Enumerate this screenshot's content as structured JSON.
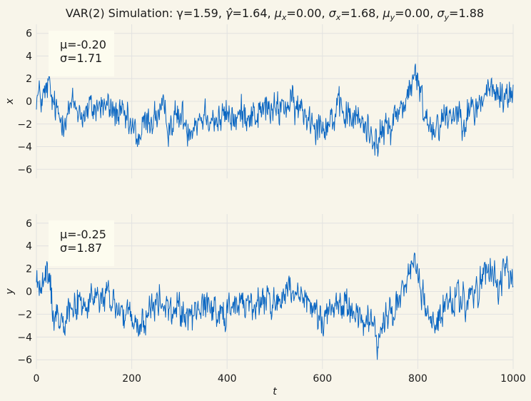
{
  "chart_data": {
    "type": "line",
    "title_parts": [
      "VAR(2) Simulation: γ=1.59, ",
      "γ̂",
      "=1.64, ",
      "μ",
      "x",
      "=0.00, ",
      "σ",
      "x",
      "=1.68, ",
      "μ",
      "y",
      "=0.00, ",
      "σ",
      "y",
      "=1.88"
    ],
    "xlabel": "t",
    "xlim": [
      0,
      1000
    ],
    "xticks": [
      0,
      200,
      400,
      600,
      800,
      1000
    ],
    "grid": true,
    "colors": {
      "background": "#f8f5ea",
      "line": "#0a66c2",
      "grid": "#e2e2e0",
      "stat_box": "#fdfcef"
    },
    "panels": [
      {
        "ylabel": "x",
        "ylim": [
          -6.8,
          6.8
        ],
        "yticks": [
          -6,
          -4,
          -2,
          0,
          2,
          4,
          6
        ],
        "stats": {
          "mean_label": "μ=-0.20",
          "std_label": "σ=1.71"
        },
        "anchors": [
          [
            0,
            0.6
          ],
          [
            10,
            0.2
          ],
          [
            20,
            0.5
          ],
          [
            25,
            1.6
          ],
          [
            30,
            0.3
          ],
          [
            40,
            -0.8
          ],
          [
            50,
            -1.6
          ],
          [
            60,
            -1.0
          ],
          [
            80,
            -0.4
          ],
          [
            100,
            -1.2
          ],
          [
            120,
            -0.6
          ],
          [
            140,
            -0.3
          ],
          [
            160,
            -0.8
          ],
          [
            180,
            -1.5
          ],
          [
            200,
            -2.5
          ],
          [
            215,
            -3.3
          ],
          [
            225,
            -2.2
          ],
          [
            240,
            -1.6
          ],
          [
            260,
            -1.0
          ],
          [
            280,
            -1.9
          ],
          [
            300,
            -1.3
          ],
          [
            320,
            -2.2
          ],
          [
            340,
            -1.4
          ],
          [
            360,
            -0.9
          ],
          [
            380,
            -1.8
          ],
          [
            400,
            -1.2
          ],
          [
            420,
            -1.6
          ],
          [
            440,
            -0.8
          ],
          [
            460,
            -1.3
          ],
          [
            480,
            -0.6
          ],
          [
            500,
            -1.0
          ],
          [
            520,
            -0.2
          ],
          [
            540,
            -0.6
          ],
          [
            560,
            -0.9
          ],
          [
            580,
            -1.5
          ],
          [
            600,
            -1.9
          ],
          [
            620,
            -1.5
          ],
          [
            640,
            -1.0
          ],
          [
            660,
            -1.4
          ],
          [
            680,
            -1.8
          ],
          [
            690,
            -2.2
          ],
          [
            700,
            -2.6
          ],
          [
            710,
            -3.0
          ],
          [
            715,
            -4.0
          ],
          [
            725,
            -2.8
          ],
          [
            740,
            -2.2
          ],
          [
            760,
            -1.0
          ],
          [
            780,
            0.6
          ],
          [
            790,
            2.0
          ],
          [
            800,
            1.6
          ],
          [
            810,
            -0.4
          ],
          [
            820,
            -1.5
          ],
          [
            830,
            -2.4
          ],
          [
            840,
            -1.8
          ],
          [
            860,
            -1.2
          ],
          [
            880,
            -0.9
          ],
          [
            900,
            -1.2
          ],
          [
            920,
            -0.8
          ],
          [
            940,
            0.6
          ],
          [
            950,
            1.0
          ],
          [
            960,
            0.7
          ],
          [
            980,
            0.4
          ],
          [
            1000,
            0.8
          ]
        ]
      },
      {
        "ylabel": "y",
        "ylim": [
          -6.8,
          6.8
        ],
        "yticks": [
          -6,
          -4,
          -2,
          0,
          2,
          4,
          6
        ],
        "stats": {
          "mean_label": "μ=-0.25",
          "std_label": "σ=1.87"
        },
        "anchors": [
          [
            0,
            1.0
          ],
          [
            10,
            0.3
          ],
          [
            20,
            0.8
          ],
          [
            22,
            1.8
          ],
          [
            28,
            0.6
          ],
          [
            35,
            -1.5
          ],
          [
            45,
            -2.3
          ],
          [
            60,
            -1.6
          ],
          [
            80,
            -0.9
          ],
          [
            100,
            -1.4
          ],
          [
            120,
            -0.8
          ],
          [
            140,
            -0.5
          ],
          [
            160,
            -1.0
          ],
          [
            180,
            -1.8
          ],
          [
            200,
            -2.8
          ],
          [
            215,
            -3.5
          ],
          [
            225,
            -2.4
          ],
          [
            240,
            -1.7
          ],
          [
            260,
            -1.0
          ],
          [
            280,
            -1.9
          ],
          [
            300,
            -1.4
          ],
          [
            320,
            -2.3
          ],
          [
            340,
            -1.5
          ],
          [
            360,
            -0.9
          ],
          [
            380,
            -1.9
          ],
          [
            400,
            -1.3
          ],
          [
            420,
            -1.6
          ],
          [
            440,
            -0.8
          ],
          [
            460,
            -1.4
          ],
          [
            480,
            -0.6
          ],
          [
            500,
            -1.0
          ],
          [
            520,
            -0.3
          ],
          [
            540,
            -0.6
          ],
          [
            560,
            -1.0
          ],
          [
            580,
            -1.6
          ],
          [
            600,
            -2.0
          ],
          [
            620,
            -1.6
          ],
          [
            640,
            -1.0
          ],
          [
            660,
            -1.4
          ],
          [
            680,
            -2.0
          ],
          [
            690,
            -2.6
          ],
          [
            700,
            -3.0
          ],
          [
            710,
            -3.6
          ],
          [
            715,
            -4.4
          ],
          [
            725,
            -3.0
          ],
          [
            740,
            -2.2
          ],
          [
            760,
            -0.8
          ],
          [
            780,
            1.0
          ],
          [
            790,
            2.6
          ],
          [
            800,
            1.8
          ],
          [
            810,
            -0.6
          ],
          [
            820,
            -1.8
          ],
          [
            830,
            -3.0
          ],
          [
            840,
            -2.2
          ],
          [
            860,
            -1.4
          ],
          [
            880,
            -0.8
          ],
          [
            900,
            -1.0
          ],
          [
            920,
            -0.4
          ],
          [
            940,
            1.2
          ],
          [
            950,
            1.6
          ],
          [
            960,
            1.0
          ],
          [
            980,
            0.9
          ],
          [
            1000,
            1.2
          ]
        ]
      }
    ]
  }
}
